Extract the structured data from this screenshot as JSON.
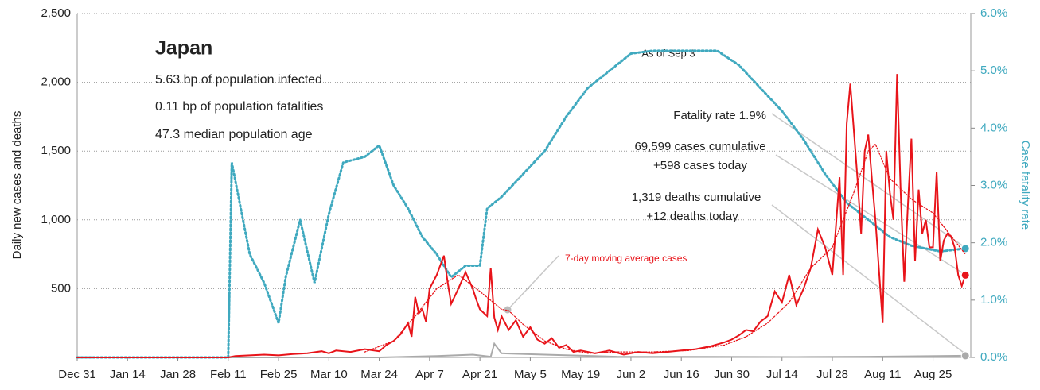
{
  "chart_data": {
    "type": "line",
    "title": "Japan",
    "subtitle": [
      "5.63 bp of population infected",
      "0.11 bp of population fatalities",
      "47.3 median population age"
    ],
    "annotations": {
      "as_of": "As of Sep 3",
      "fatality": "Fatality rate 1.9%",
      "cases_cum": "69,599 cases cumulative",
      "cases_today": "+598 cases today",
      "deaths_cum": "1,319 deaths cumulative",
      "deaths_today": "+12 deaths today",
      "moving_avg": "7-day moving average cases"
    },
    "ylabel": "Daily new cases and deaths",
    "y2label": "Case fatality rate",
    "xlim": [
      0,
      248.5
    ],
    "xticks": [
      {
        "value": 0,
        "label": "Dec 31"
      },
      {
        "value": 14,
        "label": "Jan 14"
      },
      {
        "value": 28,
        "label": "Jan 28"
      },
      {
        "value": 42,
        "label": "Feb 11"
      },
      {
        "value": 56,
        "label": "Feb 25"
      },
      {
        "value": 70,
        "label": "Mar 10"
      },
      {
        "value": 84,
        "label": "Mar 24"
      },
      {
        "value": 98,
        "label": "Apr 7"
      },
      {
        "value": 112,
        "label": "Apr 21"
      },
      {
        "value": 126,
        "label": "May 5"
      },
      {
        "value": 140,
        "label": "May 19"
      },
      {
        "value": 154,
        "label": "Jun 2"
      },
      {
        "value": 168,
        "label": "Jun 16"
      },
      {
        "value": 182,
        "label": "Jun 30"
      },
      {
        "value": 196,
        "label": "Jul 14"
      },
      {
        "value": 210,
        "label": "Jul 28"
      },
      {
        "value": 224,
        "label": "Aug 11"
      },
      {
        "value": 238,
        "label": "Aug 25"
      }
    ],
    "ylim": [
      0,
      2500
    ],
    "yticks": [
      0,
      500,
      {
        "value": 1000,
        "label": "1,000"
      },
      {
        "value": 1500,
        "label": "1,500"
      },
      {
        "value": 2000,
        "label": "2,000"
      },
      {
        "value": 2500,
        "label": "2,500"
      }
    ],
    "y2lim": [
      0,
      6
    ],
    "y2ticks": [
      {
        "value": 0,
        "label": "0.0%"
      },
      {
        "value": 1,
        "label": "1.0%"
      },
      {
        "value": 2,
        "label": "2.0%"
      },
      {
        "value": 3,
        "label": "3.0%"
      },
      {
        "value": 4,
        "label": "4.0%"
      },
      {
        "value": 5,
        "label": "5.0%"
      },
      {
        "value": 6,
        "label": "6.0%"
      }
    ],
    "grid": true,
    "series": [
      {
        "color": "#aaaaaa",
        "style": "solid",
        "endpoint": true,
        "x": [
          0,
          84,
          100,
          110,
          115,
          116,
          118,
          130,
          150,
          200,
          220,
          247
        ],
        "values": [
          0,
          0,
          10,
          20,
          5,
          100,
          30,
          20,
          5,
          3,
          5,
          12
        ]
      },
      {
        "color": "#3fa9bf",
        "style": "dotted",
        "axis": "y2",
        "endpoint": true,
        "x": [
          0,
          42,
          43,
          48,
          52,
          56,
          58,
          62,
          66,
          70,
          74,
          80,
          84,
          88,
          92,
          96,
          100,
          104,
          108,
          112,
          114,
          118,
          124,
          130,
          136,
          142,
          148,
          154,
          160,
          170,
          178,
          184,
          190,
          196,
          202,
          208,
          214,
          220,
          226,
          232,
          240,
          247
        ],
        "values": [
          0,
          0,
          3.4,
          1.8,
          1.3,
          0.6,
          1.4,
          2.4,
          1.3,
          2.5,
          3.4,
          3.5,
          3.7,
          3.0,
          2.6,
          2.1,
          1.8,
          1.4,
          1.6,
          1.6,
          2.6,
          2.8,
          3.2,
          3.6,
          4.2,
          4.7,
          5.0,
          5.3,
          5.35,
          5.35,
          5.35,
          5.1,
          4.7,
          4.3,
          3.8,
          3.2,
          2.7,
          2.4,
          2.1,
          1.95,
          1.85,
          1.9
        ]
      },
      {
        "color": "#e8141a",
        "style": "dotted",
        "x": [
          80,
          88,
          94,
          100,
          106,
          112,
          118,
          120,
          124,
          130,
          136,
          142,
          150,
          160,
          170,
          180,
          186,
          192,
          198,
          204,
          210,
          216,
          220,
          222,
          226,
          232,
          238,
          244,
          247
        ],
        "values": [
          40,
          120,
          300,
          500,
          600,
          480,
          350,
          340,
          240,
          120,
          60,
          30,
          40,
          40,
          50,
          90,
          150,
          250,
          400,
          650,
          800,
          1200,
          1500,
          1550,
          1300,
          1150,
          1050,
          850,
          750
        ]
      },
      {
        "color": "#e8141a",
        "style": "solid",
        "endpoint": true,
        "x": [
          0,
          42,
          44,
          48,
          52,
          56,
          60,
          64,
          68,
          70,
          72,
          76,
          80,
          84,
          86,
          88,
          90,
          92,
          93,
          94,
          95,
          96,
          97,
          98,
          100,
          102,
          103,
          104,
          106,
          108,
          110,
          111,
          112,
          114,
          115,
          116,
          117,
          118,
          120,
          122,
          124,
          126,
          128,
          130,
          132,
          134,
          136,
          138,
          140,
          144,
          148,
          152,
          156,
          160,
          164,
          168,
          172,
          176,
          180,
          182,
          184,
          186,
          188,
          190,
          192,
          194,
          196,
          198,
          200,
          202,
          204,
          206,
          208,
          210,
          212,
          213,
          214,
          215,
          217,
          218,
          219,
          220,
          221,
          222,
          224,
          225,
          226,
          227,
          228,
          229,
          230,
          231,
          232,
          233,
          234,
          235,
          236,
          237,
          238,
          239,
          240,
          241,
          242,
          243,
          244,
          245,
          246,
          247
        ],
        "values": [
          0,
          0,
          10,
          15,
          20,
          15,
          25,
          30,
          45,
          30,
          50,
          40,
          60,
          45,
          90,
          120,
          170,
          250,
          150,
          440,
          320,
          350,
          260,
          500,
          600,
          740,
          550,
          390,
          500,
          620,
          500,
          420,
          350,
          300,
          650,
          290,
          200,
          300,
          200,
          270,
          150,
          220,
          130,
          100,
          140,
          70,
          90,
          40,
          50,
          30,
          50,
          20,
          40,
          30,
          40,
          50,
          60,
          80,
          110,
          130,
          160,
          200,
          190,
          260,
          300,
          480,
          400,
          600,
          380,
          500,
          650,
          930,
          800,
          600,
          1310,
          600,
          1700,
          1990,
          1300,
          900,
          1500,
          1620,
          1300,
          1000,
          250,
          1500,
          1200,
          1000,
          2060,
          1200,
          550,
          1100,
          1590,
          700,
          1220,
          900,
          1000,
          800,
          800,
          1350,
          700,
          850,
          900,
          880,
          800,
          600,
          520,
          598
        ]
      }
    ]
  }
}
